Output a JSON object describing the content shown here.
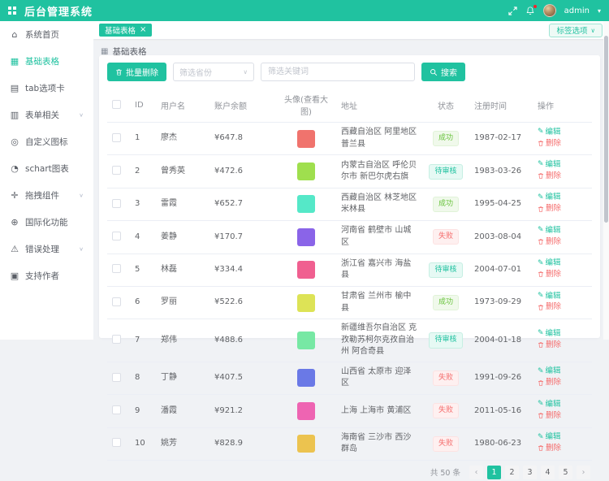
{
  "colors": {
    "primary": "#20c2a0",
    "danger": "#f56c6c",
    "success": "#67c23a"
  },
  "icons": {
    "chevron_down": "∨",
    "caret_down": "▾",
    "close": "×",
    "grid": "▦",
    "edit": "✎",
    "prev": "‹",
    "next": "›"
  },
  "header": {
    "title": "后台管理系统",
    "username": "admin"
  },
  "tabs": {
    "active_tab": "基础表格",
    "tag_options_label": "标签选项"
  },
  "breadcrumb": {
    "title": "基础表格"
  },
  "toolbar": {
    "batch_delete": "批量删除",
    "province_placeholder": "筛选省份",
    "keyword_placeholder": "筛选关键词",
    "search": "搜索"
  },
  "sidebar": {
    "items": [
      {
        "glyph": "⌂",
        "label": "系统首页",
        "expandable": false,
        "active": false
      },
      {
        "glyph": "▦",
        "label": "基础表格",
        "expandable": false,
        "active": true
      },
      {
        "glyph": "▤",
        "label": "tab选项卡",
        "expandable": false,
        "active": false
      },
      {
        "glyph": "▥",
        "label": "表单相关",
        "expandable": true,
        "active": false
      },
      {
        "glyph": "◎",
        "label": "自定义图标",
        "expandable": false,
        "active": false
      },
      {
        "glyph": "◔",
        "label": "schart图表",
        "expandable": false,
        "active": false
      },
      {
        "glyph": "✛",
        "label": "拖拽组件",
        "expandable": true,
        "active": false
      },
      {
        "glyph": "⊕",
        "label": "国际化功能",
        "expandable": false,
        "active": false
      },
      {
        "glyph": "⚠",
        "label": "错误处理",
        "expandable": true,
        "active": false
      },
      {
        "glyph": "▣",
        "label": "支持作者",
        "expandable": false,
        "active": false
      }
    ]
  },
  "table": {
    "columns": [
      "ID",
      "用户名",
      "账户余额",
      "头像(查看大图)",
      "地址",
      "状态",
      "注册时间",
      "操作"
    ],
    "actions": {
      "edit": "编辑",
      "delete": "删除"
    },
    "rows": [
      {
        "id": 1,
        "name": "廖杰",
        "balance": "¥647.8",
        "avatar_color": "#f0736d",
        "address": "西藏自治区 阿里地区 普兰县",
        "status": "成功",
        "status_type": "success",
        "date": "1987-02-17"
      },
      {
        "id": 2,
        "name": "曾秀英",
        "balance": "¥472.6",
        "avatar_color": "#9fdf4e",
        "address": "内蒙古自治区 呼伦贝尔市 新巴尔虎右旗",
        "status": "待审核",
        "status_type": "pending",
        "date": "1983-03-26"
      },
      {
        "id": 3,
        "name": "雷霞",
        "balance": "¥652.7",
        "avatar_color": "#55e8c8",
        "address": "西藏自治区 林芝地区 米林县",
        "status": "成功",
        "status_type": "success",
        "date": "1995-04-25"
      },
      {
        "id": 4,
        "name": "姜静",
        "balance": "¥170.7",
        "avatar_color": "#8a64e8",
        "address": "河南省 鹤壁市 山城区",
        "status": "失败",
        "status_type": "danger",
        "date": "2003-08-04"
      },
      {
        "id": 5,
        "name": "林磊",
        "balance": "¥334.4",
        "avatar_color": "#f05f90",
        "address": "浙江省 嘉兴市 海盐县",
        "status": "待审核",
        "status_type": "pending",
        "date": "2004-07-01"
      },
      {
        "id": 6,
        "name": "罗丽",
        "balance": "¥522.6",
        "avatar_color": "#dde356",
        "address": "甘肃省 兰州市 榆中县",
        "status": "成功",
        "status_type": "success",
        "date": "1973-09-29"
      },
      {
        "id": 7,
        "name": "郑伟",
        "balance": "¥488.6",
        "avatar_color": "#77e8a4",
        "address": "新疆维吾尔自治区 克孜勒苏柯尔克孜自治州 阿合奇县",
        "status": "待审核",
        "status_type": "pending",
        "date": "2004-01-18"
      },
      {
        "id": 8,
        "name": "丁静",
        "balance": "¥407.5",
        "avatar_color": "#6a79e6",
        "address": "山西省 太原市 迎泽区",
        "status": "失败",
        "status_type": "danger",
        "date": "1991-09-26"
      },
      {
        "id": 9,
        "name": "潘霞",
        "balance": "¥921.2",
        "avatar_color": "#ee64b2",
        "address": "上海 上海市 黄浦区",
        "status": "失败",
        "status_type": "danger",
        "date": "2011-05-16"
      },
      {
        "id": 10,
        "name": "姚芳",
        "balance": "¥828.9",
        "avatar_color": "#ecc34f",
        "address": "海南省 三沙市 西沙群岛",
        "status": "失败",
        "status_type": "danger",
        "date": "1980-06-23"
      }
    ]
  },
  "pagination": {
    "total_text": "共 50 条",
    "pages": [
      "1",
      "2",
      "3",
      "4",
      "5"
    ],
    "active_page": "1"
  }
}
